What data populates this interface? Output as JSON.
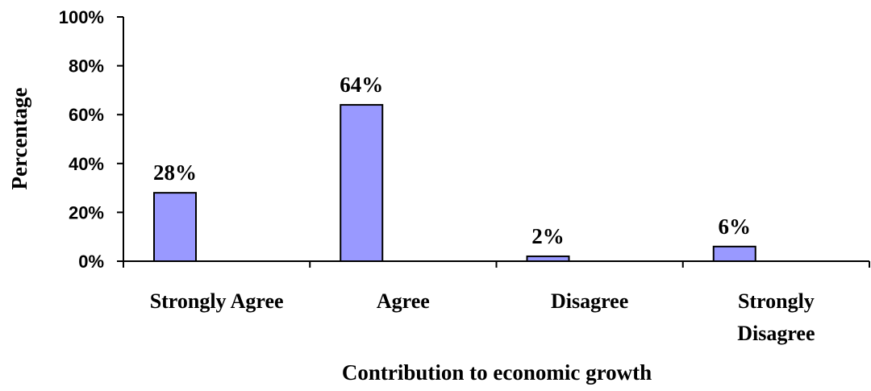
{
  "chart_data": {
    "type": "bar",
    "categories": [
      "Strongly Agree",
      "Agree",
      "Disagree",
      "Strongly Disagree"
    ],
    "category_lines": [
      [
        "Strongly Agree"
      ],
      [
        "Agree"
      ],
      [
        "Disagree"
      ],
      [
        "Strongly",
        "Disagree"
      ]
    ],
    "values": [
      28,
      64,
      2,
      6
    ],
    "data_labels": [
      "28%",
      "64%",
      "2%",
      "6%"
    ],
    "yticks": [
      "0%",
      "20%",
      "40%",
      "60%",
      "80%",
      "100%"
    ],
    "ylim": [
      0,
      100
    ],
    "xlabel": "Contribution to economic growth",
    "ylabel": "Percentage",
    "grid": false,
    "legend": "none",
    "bar_color": "#9999ff",
    "bar_edge_color": "#000000"
  }
}
